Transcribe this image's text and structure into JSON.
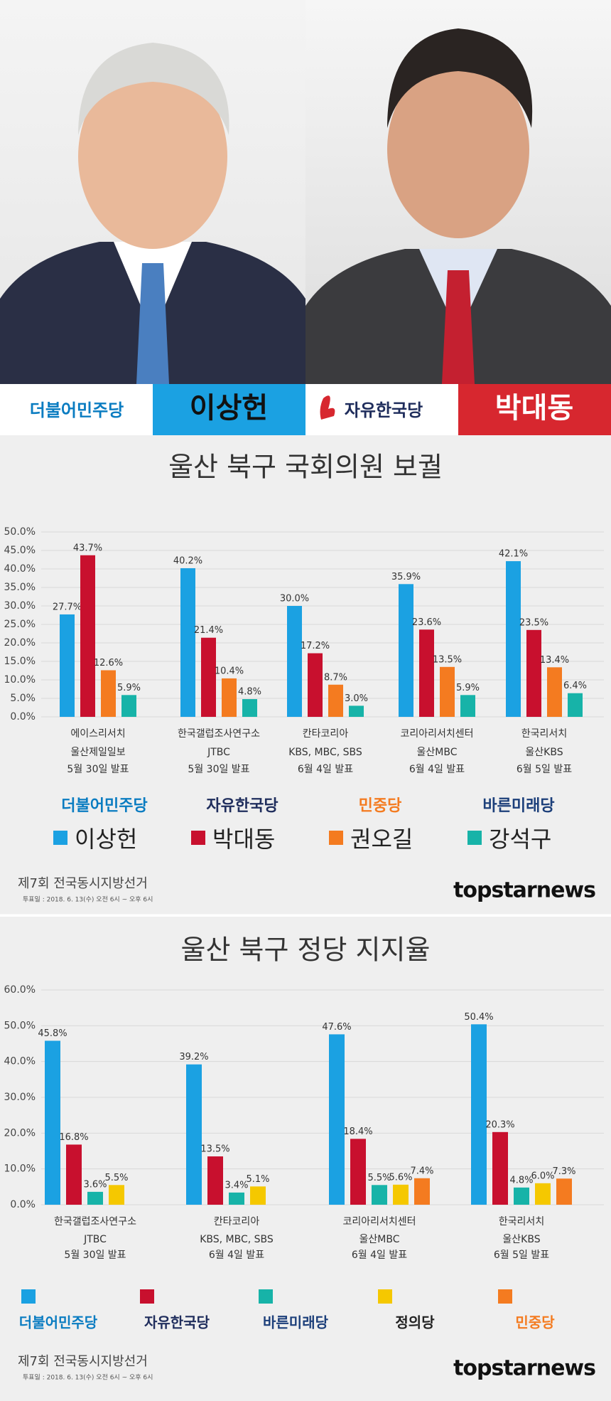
{
  "header": {
    "parties": [
      "더불어민주당",
      "자유한국당"
    ],
    "candidates": [
      "이상헌",
      "박대동"
    ]
  },
  "chart_data": [
    {
      "type": "bar",
      "title": "울산 북구 국회의원 보궐",
      "categories": [
        [
          "에이스리서치",
          "울산제일일보",
          "5월 30일 발표"
        ],
        [
          "한국갤럽조사연구소",
          "JTBC",
          "5월 30일 발표"
        ],
        [
          "칸타코리아",
          "KBS, MBC, SBS",
          "6월 4일 발표"
        ],
        [
          "코리아리서치센터",
          "울산MBC",
          "6월 4일 발표"
        ],
        [
          "한국리서치",
          "울산KBS",
          "6월 5일 발표"
        ]
      ],
      "series": [
        {
          "name": "이상헌",
          "party": "더불어민주당",
          "party_color": "#0a7cc1",
          "color": "#1ba1e2",
          "values": [
            27.7,
            40.2,
            30.0,
            35.9,
            42.1
          ],
          "value_labels": [
            "27.7%",
            "40.2%",
            "30.0%",
            "35.9%",
            "42.1%"
          ]
        },
        {
          "name": "박대동",
          "party": "자유한국당",
          "party_color": "#1f2d5c",
          "color": "#c8102e",
          "values": [
            43.7,
            21.4,
            17.2,
            23.6,
            23.5
          ],
          "value_labels": [
            "43.7%",
            "21.4%",
            "17.2%",
            "23.6%",
            "23.5%"
          ]
        },
        {
          "name": "권오길",
          "party": "민중당",
          "party_color": "#f47b20",
          "color": "#f47b20",
          "values": [
            12.6,
            10.4,
            8.7,
            13.5,
            13.4
          ],
          "value_labels": [
            "12.6%",
            "10.4%",
            "8.7%",
            "13.5%",
            "13.4%"
          ]
        },
        {
          "name": "강석구",
          "party": "바른미래당",
          "party_color": "#1c3f7a",
          "color": "#17b3a8",
          "values": [
            5.9,
            4.8,
            3.0,
            5.9,
            6.4
          ],
          "value_labels": [
            "5.9%",
            "4.8%",
            "3.0%",
            "5.9%",
            "6.4%"
          ]
        }
      ],
      "ylim": [
        0,
        50
      ],
      "yticks": [
        {
          "value": 0,
          "label": "0.0%"
        },
        {
          "value": 5,
          "label": "5.0%"
        },
        {
          "value": 10,
          "label": "10.0%"
        },
        {
          "value": 15,
          "label": "15.0%"
        },
        {
          "value": 20,
          "label": "20.0%"
        },
        {
          "value": 25,
          "label": "25.0%"
        },
        {
          "value": 30,
          "label": "30.0%"
        },
        {
          "value": 35,
          "label": "35.0%"
        },
        {
          "value": 40,
          "label": "40.0%"
        },
        {
          "value": 45,
          "label": "45.0%"
        },
        {
          "value": 50,
          "label": "50.0%"
        }
      ],
      "grid": true
    },
    {
      "type": "bar",
      "title": "울산 북구 정당 지지율",
      "categories": [
        [
          "한국갤럽조사연구소",
          "JTBC",
          "5월 30일 발표"
        ],
        [
          "칸타코리아",
          "KBS, MBC, SBS",
          "6월 4일 발표"
        ],
        [
          "코리아리서치센터",
          "울산MBC",
          "6월 4일 발표"
        ],
        [
          "한국리서치",
          "울산KBS",
          "6월 5일 발표"
        ]
      ],
      "series": [
        {
          "name": "더불어민주당",
          "party_color": "#0a7cc1",
          "color": "#1ba1e2",
          "values": [
            45.8,
            39.2,
            47.6,
            50.4
          ],
          "value_labels": [
            "45.8%",
            "39.2%",
            "47.6%",
            "50.4%"
          ]
        },
        {
          "name": "자유한국당",
          "party_color": "#1f2d5c",
          "color": "#c8102e",
          "values": [
            16.8,
            13.5,
            18.4,
            20.3
          ],
          "value_labels": [
            "16.8%",
            "13.5%",
            "18.4%",
            "20.3%"
          ]
        },
        {
          "name": "바른미래당",
          "party_color": "#1c3f7a",
          "color": "#17b3a8",
          "values": [
            3.6,
            3.4,
            5.5,
            4.8
          ],
          "value_labels": [
            "3.6%",
            "3.4%",
            "5.5%",
            "4.8%"
          ]
        },
        {
          "name": "정의당",
          "party_color": "#222222",
          "color": "#f5c800",
          "values": [
            5.5,
            5.1,
            5.6,
            6.0
          ],
          "value_labels": [
            "5.5%",
            "5.1%",
            "5.6%",
            "6.0%"
          ]
        },
        {
          "name": "민중당",
          "party_color": "#f47b20",
          "color": "#f47b20",
          "values": [
            null,
            null,
            7.4,
            7.3
          ],
          "value_labels": [
            null,
            null,
            "7.4%",
            "7.3%"
          ]
        }
      ],
      "ylim": [
        0,
        60
      ],
      "yticks": [
        {
          "value": 0,
          "label": "0.0%"
        },
        {
          "value": 10,
          "label": "10.0%"
        },
        {
          "value": 20,
          "label": "20.0%"
        },
        {
          "value": 30,
          "label": "30.0%"
        },
        {
          "value": 40,
          "label": "40.0%"
        },
        {
          "value": 50,
          "label": "50.0%"
        },
        {
          "value": 60,
          "label": "60.0%"
        }
      ],
      "grid": true
    }
  ],
  "footer": {
    "election": "제7회 전국동시지방선거",
    "vote_date": "투표일 : 2018. 6. 13(수) 오전 6시 ~ 오후 6시",
    "brand": "topstarnews"
  }
}
